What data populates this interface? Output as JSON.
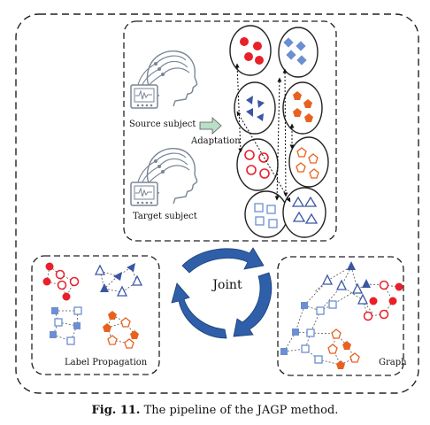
{
  "labels": {
    "source_subject": "Source subject",
    "adaptation": "Adaptation",
    "target_subject": "Target subject",
    "joint": "Joint",
    "label_propagation": "Label Propagation",
    "graph": "Graph"
  },
  "caption": {
    "figure_number": "Fig. 11.",
    "text": "The pipeline of the JAGP method."
  },
  "colors": {
    "red": "#e8202a",
    "blue": "#3a56a5",
    "light_blue": "#6b8fd0",
    "orange": "#e8621f",
    "arrow_blue": "#2e5fa8",
    "adapt_arrow": "#b9dfc6"
  }
}
